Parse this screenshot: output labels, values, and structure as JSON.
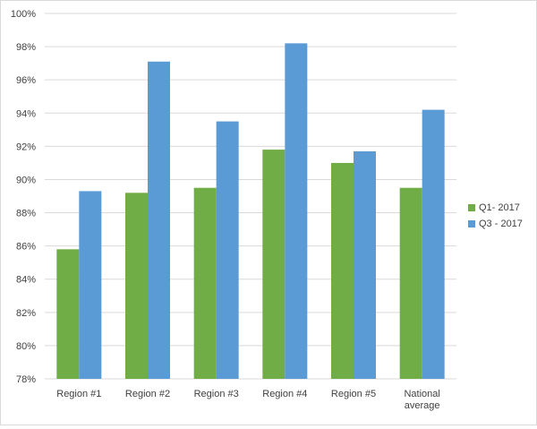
{
  "chart_data": {
    "type": "bar",
    "categories": [
      "Region #1",
      "Region #2",
      "Region #3",
      "Region #4",
      "Region #5",
      "National average"
    ],
    "category_lines": [
      [
        "Region #1"
      ],
      [
        "Region #2"
      ],
      [
        "Region #3"
      ],
      [
        "Region #4"
      ],
      [
        "Region #5"
      ],
      [
        "National",
        "average"
      ]
    ],
    "series": [
      {
        "name": "Q1- 2017",
        "color": "#70ad47",
        "values": [
          85.8,
          89.2,
          89.5,
          91.8,
          91.0,
          89.5
        ]
      },
      {
        "name": "Q3 - 2017",
        "color": "#5b9bd5",
        "values": [
          89.3,
          97.1,
          93.5,
          98.2,
          91.7,
          94.2
        ]
      }
    ],
    "ylim": [
      78,
      100
    ],
    "yticks": [
      "78%",
      "80%",
      "82%",
      "84%",
      "86%",
      "88%",
      "90%",
      "92%",
      "94%",
      "96%",
      "98%",
      "100%"
    ],
    "grid": true,
    "legend_position": "right",
    "gridline_color": "#d9d9d9"
  }
}
